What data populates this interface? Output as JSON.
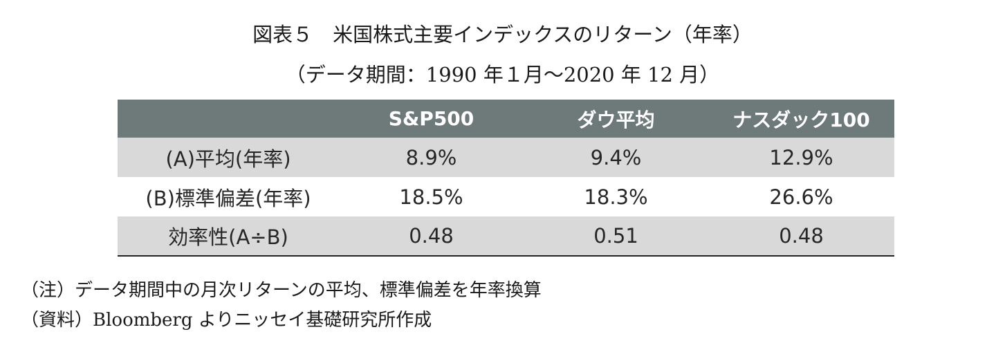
{
  "title": {
    "main": "図表５　米国株式主要インデックスのリターン（年率）",
    "sub": "（データ期間：1990 年１月～2020 年 12 月）"
  },
  "table": {
    "columns": [
      "",
      "S&P500",
      "ダウ平均",
      "ナスダック100"
    ],
    "rows": [
      {
        "label": "(A)平均(年率)",
        "values": [
          "8.9%",
          "9.4%",
          "12.9%"
        ]
      },
      {
        "label": "(B)標準偏差(年率)",
        "values": [
          "18.5%",
          "18.3%",
          "26.6%"
        ]
      },
      {
        "label": "効率性(A÷B)",
        "values": [
          "0.48",
          "0.51",
          "0.48"
        ]
      }
    ]
  },
  "notes": {
    "note": "（注）データ期間中の月次リターンの平均、標準偏差を年率換算",
    "source": "（資料）Bloomberg よりニッセイ基礎研究所作成"
  },
  "colors": {
    "header_bg": "#6e7a7a",
    "shaded_row_bg": "#d9d9d9"
  }
}
